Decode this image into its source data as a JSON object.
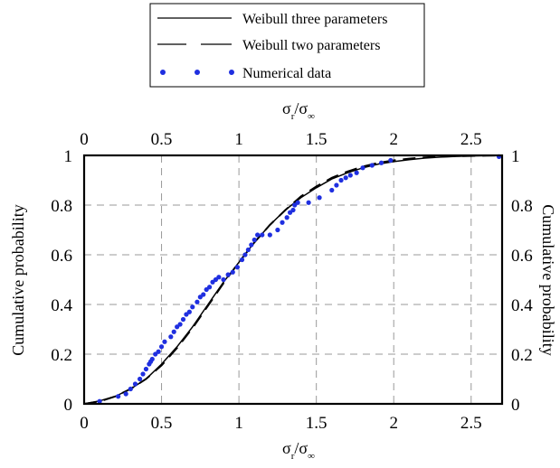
{
  "chart_data": {
    "type": "line",
    "xlabel_bottom": {
      "main": "σ",
      "sub": "r",
      "tail": "/σ",
      "sub2": "∞"
    },
    "xlabel_top": {
      "main": "σ",
      "sub": "r",
      "tail": "/σ",
      "sub2": "∞"
    },
    "ylabel_left": "Cumulative probability",
    "ylabel_right": "Cumulative probability",
    "xlim": [
      0,
      2.7
    ],
    "ylim": [
      0,
      1
    ],
    "x_ticks": [
      "0",
      "0.5",
      "1",
      "1.5",
      "2",
      "2.5"
    ],
    "x_tick_values": [
      0,
      0.5,
      1,
      1.5,
      2,
      2.5
    ],
    "y_ticks": [
      "0",
      "0.2",
      "0.4",
      "0.6",
      "0.8",
      "1"
    ],
    "y_tick_values": [
      0,
      0.2,
      0.4,
      0.6,
      0.8,
      1
    ],
    "grid": true,
    "legend_placement": "top-center, outside",
    "series": [
      {
        "name": "Weibull three parameters",
        "style": "solid",
        "color": "#000000",
        "x": [
          0.0,
          0.1,
          0.2,
          0.3,
          0.4,
          0.5,
          0.6,
          0.7,
          0.8,
          0.9,
          1.0,
          1.1,
          1.2,
          1.3,
          1.4,
          1.5,
          1.6,
          1.7,
          1.8,
          1.9,
          2.0,
          2.1,
          2.2,
          2.3,
          2.4,
          2.5,
          2.6,
          2.68
        ],
        "y": [
          0.0,
          0.012,
          0.03,
          0.06,
          0.1,
          0.16,
          0.23,
          0.31,
          0.4,
          0.49,
          0.57,
          0.65,
          0.72,
          0.78,
          0.83,
          0.87,
          0.905,
          0.93,
          0.95,
          0.965,
          0.975,
          0.983,
          0.989,
          0.993,
          0.996,
          0.998,
          0.999,
          1.0
        ]
      },
      {
        "name": "Weibull two parameters",
        "style": "dashed",
        "color": "#000000",
        "x": [
          0.0,
          0.1,
          0.2,
          0.3,
          0.4,
          0.5,
          0.6,
          0.7,
          0.8,
          0.9,
          1.0,
          1.1,
          1.2,
          1.3,
          1.4,
          1.5,
          1.6,
          1.7,
          1.8,
          1.9,
          2.0,
          2.1,
          2.2,
          2.3,
          2.4,
          2.5,
          2.6,
          2.68
        ],
        "y": [
          0.0,
          0.01,
          0.03,
          0.06,
          0.1,
          0.155,
          0.225,
          0.305,
          0.395,
          0.485,
          0.57,
          0.65,
          0.72,
          0.78,
          0.835,
          0.875,
          0.91,
          0.935,
          0.955,
          0.97,
          0.98,
          0.987,
          0.992,
          0.995,
          0.997,
          0.998,
          0.999,
          1.0
        ]
      },
      {
        "name": "Numerical data",
        "style": "markers",
        "color": "#1f2fe0",
        "x": [
          0.1,
          0.22,
          0.27,
          0.3,
          0.33,
          0.36,
          0.38,
          0.4,
          0.42,
          0.43,
          0.44,
          0.46,
          0.48,
          0.5,
          0.52,
          0.56,
          0.58,
          0.6,
          0.62,
          0.64,
          0.66,
          0.68,
          0.7,
          0.73,
          0.75,
          0.77,
          0.79,
          0.81,
          0.83,
          0.85,
          0.87,
          0.9,
          0.93,
          0.96,
          0.99,
          1.02,
          1.04,
          1.06,
          1.08,
          1.1,
          1.12,
          1.15,
          1.2,
          1.25,
          1.28,
          1.31,
          1.33,
          1.35,
          1.36,
          1.38,
          1.45,
          1.52,
          1.6,
          1.63,
          1.66,
          1.69,
          1.72,
          1.76,
          1.8,
          1.86,
          1.92,
          1.98,
          2.68
        ],
        "y": [
          0.01,
          0.03,
          0.04,
          0.06,
          0.08,
          0.1,
          0.12,
          0.14,
          0.16,
          0.17,
          0.18,
          0.2,
          0.21,
          0.23,
          0.25,
          0.27,
          0.29,
          0.31,
          0.32,
          0.34,
          0.36,
          0.37,
          0.39,
          0.41,
          0.43,
          0.44,
          0.46,
          0.47,
          0.49,
          0.5,
          0.51,
          0.5,
          0.52,
          0.53,
          0.55,
          0.58,
          0.6,
          0.62,
          0.64,
          0.66,
          0.68,
          0.68,
          0.68,
          0.7,
          0.73,
          0.75,
          0.77,
          0.78,
          0.8,
          0.81,
          0.81,
          0.83,
          0.86,
          0.88,
          0.9,
          0.91,
          0.92,
          0.93,
          0.95,
          0.96,
          0.97,
          0.98,
          0.995
        ]
      }
    ]
  }
}
